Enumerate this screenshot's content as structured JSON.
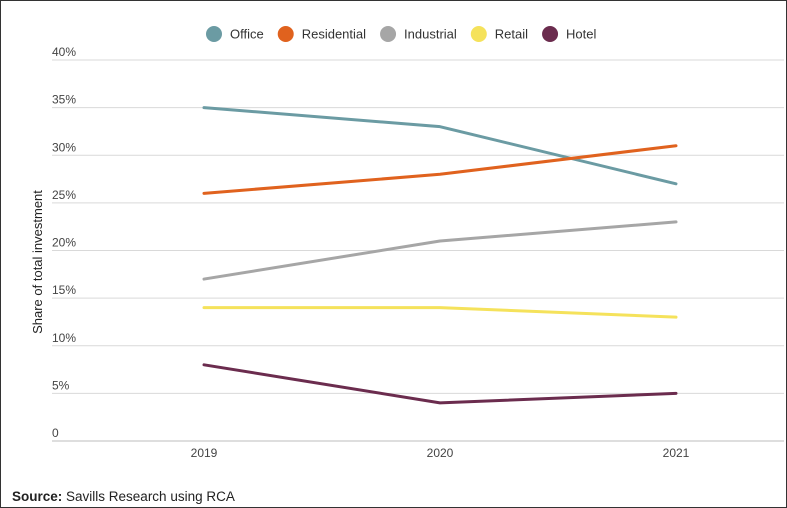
{
  "chart_data": {
    "type": "line",
    "categories": [
      "2019",
      "2020",
      "2021"
    ],
    "ylabel": "Share of total investment",
    "yticks": [
      "0",
      "5%",
      "10%",
      "15%",
      "20%",
      "25%",
      "30%",
      "35%",
      "40%"
    ],
    "ylim": [
      0,
      40
    ],
    "grid": "horizontal",
    "legend_position": "top",
    "series": [
      {
        "name": "Office",
        "color": "#6b9ba3",
        "values": [
          35,
          33,
          27
        ]
      },
      {
        "name": "Residential",
        "color": "#e0621e",
        "values": [
          26,
          28,
          31
        ]
      },
      {
        "name": "Industrial",
        "color": "#a6a6a6",
        "values": [
          17,
          21,
          23
        ]
      },
      {
        "name": "Retail",
        "color": "#f5e25b",
        "values": [
          14,
          14,
          13
        ]
      },
      {
        "name": "Hotel",
        "color": "#6b2c4e",
        "values": [
          8,
          4,
          5
        ]
      }
    ]
  },
  "source": {
    "label": "Source:",
    "text": "Savills Research using RCA"
  }
}
